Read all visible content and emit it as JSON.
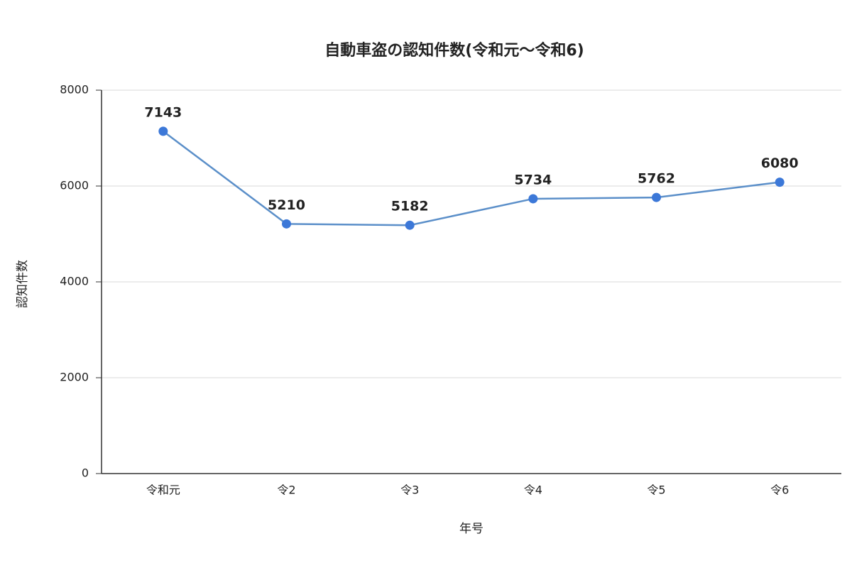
{
  "chart_data": {
    "type": "line",
    "title": "自動車盗の認知件数(令和元〜令和6)",
    "x_label": "年号",
    "y_label": "認知件数",
    "categories": [
      "令和元",
      "令2",
      "令3",
      "令4",
      "令5",
      "令6"
    ],
    "values": [
      7143,
      5210,
      5182,
      5734,
      5762,
      6080
    ],
    "color": "#3c78d8",
    "ylim": [
      0,
      8000
    ],
    "yticks": [
      0,
      2000,
      4000,
      6000,
      8000
    ],
    "grid": true
  }
}
